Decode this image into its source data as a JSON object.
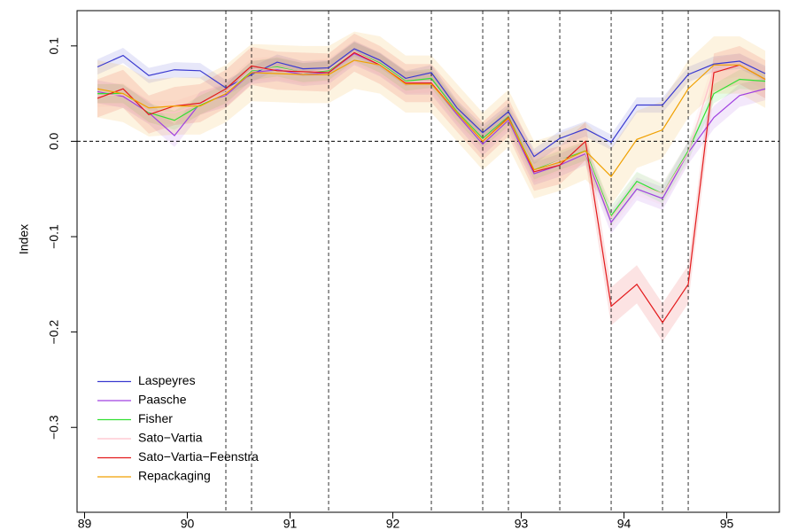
{
  "chart_data": {
    "type": "line",
    "y_label": "Index",
    "x": [
      1,
      2,
      3,
      4,
      5,
      6,
      7,
      8,
      9,
      10,
      11,
      12,
      13,
      14,
      15,
      16,
      17,
      18,
      19,
      20,
      21,
      22,
      23,
      24,
      25,
      26,
      27
    ],
    "xlim": [
      0.207,
      27.55
    ],
    "xticks": [
      {
        "value": 0.5,
        "label": "89"
      },
      {
        "value": 4.5,
        "label": "90"
      },
      {
        "value": 8.5,
        "label": "91"
      },
      {
        "value": 12.5,
        "label": "92"
      },
      {
        "value": 17.5,
        "label": "93"
      },
      {
        "value": 21.5,
        "label": "94"
      },
      {
        "value": 25.5,
        "label": "95"
      }
    ],
    "ylim": [
      -0.389,
      0.137
    ],
    "yticks": [
      {
        "value": -0.3,
        "label": "−0.3"
      },
      {
        "value": -0.2,
        "label": "−0.2"
      },
      {
        "value": -0.1,
        "label": "−0.1"
      },
      {
        "value": 0,
        "label": "0.0"
      },
      0.1
    ],
    "vlines": [
      6,
      7,
      10,
      14,
      16,
      17,
      19,
      21,
      23,
      24
    ],
    "hline": 0,
    "legend": "bottomleft",
    "series": [
      {
        "name": "Laspeyres",
        "color": "#3a3ad0",
        "interval": 0.008,
        "values": [
          0.078,
          0.09,
          0.069,
          0.075,
          0.074,
          0.056,
          0.07,
          0.083,
          0.076,
          0.077,
          0.097,
          0.085,
          0.066,
          0.072,
          0.035,
          0.009,
          0.031,
          -0.016,
          0.003,
          0.013,
          -0.001,
          0.038,
          0.038,
          0.07,
          0.081,
          0.084,
          0.071
        ]
      },
      {
        "name": "Paasche",
        "color": "#a040e0",
        "interval": 0.012,
        "values": [
          0.052,
          0.047,
          0.03,
          0.006,
          0.04,
          0.048,
          0.072,
          0.075,
          0.07,
          0.072,
          0.092,
          0.08,
          0.061,
          0.061,
          0.028,
          -0.003,
          0.022,
          -0.034,
          -0.025,
          -0.013,
          -0.085,
          -0.05,
          -0.06,
          -0.012,
          0.025,
          0.048,
          0.055
        ]
      },
      {
        "name": "Fisher",
        "color": "#33e033",
        "interval": 0.01,
        "values": [
          0.05,
          0.05,
          0.03,
          0.022,
          0.038,
          0.05,
          0.074,
          0.078,
          0.072,
          0.074,
          0.094,
          0.082,
          0.063,
          0.066,
          0.031,
          0.003,
          0.026,
          -0.03,
          -0.02,
          -0.01,
          -0.078,
          -0.042,
          -0.055,
          -0.01,
          0.05,
          0.065,
          0.063
        ]
      },
      {
        "name": "Sato−Vartia",
        "color": "#ffc0cb",
        "interval": 0.012,
        "values": [
          0.048,
          0.049,
          0.031,
          0.03,
          0.039,
          0.051,
          0.075,
          0.077,
          0.072,
          0.075,
          0.094,
          0.081,
          0.062,
          0.063,
          0.03,
          0.001,
          0.025,
          -0.031,
          -0.02,
          -0.012,
          -0.08,
          -0.045,
          -0.055,
          -0.012,
          0.075,
          0.08,
          0.065
        ]
      },
      {
        "name": "Sato−Vartia−Feenstra",
        "color": "#e31a1c",
        "interval": 0.02,
        "values": [
          0.045,
          0.055,
          0.028,
          0.037,
          0.04,
          0.055,
          0.079,
          0.074,
          0.073,
          0.072,
          0.093,
          0.08,
          0.061,
          0.061,
          0.03,
          0.0,
          0.025,
          -0.032,
          -0.025,
          0.0,
          -0.173,
          -0.15,
          -0.19,
          -0.15,
          0.072,
          0.08,
          0.065
        ]
      },
      {
        "name": "Repackaging",
        "color": "#f0a000",
        "interval": 0.03,
        "values": [
          0.055,
          0.05,
          0.035,
          0.037,
          0.037,
          0.05,
          0.072,
          0.071,
          0.07,
          0.07,
          0.085,
          0.08,
          0.06,
          0.06,
          0.03,
          0.0,
          0.024,
          -0.03,
          -0.022,
          -0.01,
          -0.037,
          0.002,
          0.012,
          0.055,
          0.08,
          0.08,
          0.065
        ]
      }
    ]
  }
}
